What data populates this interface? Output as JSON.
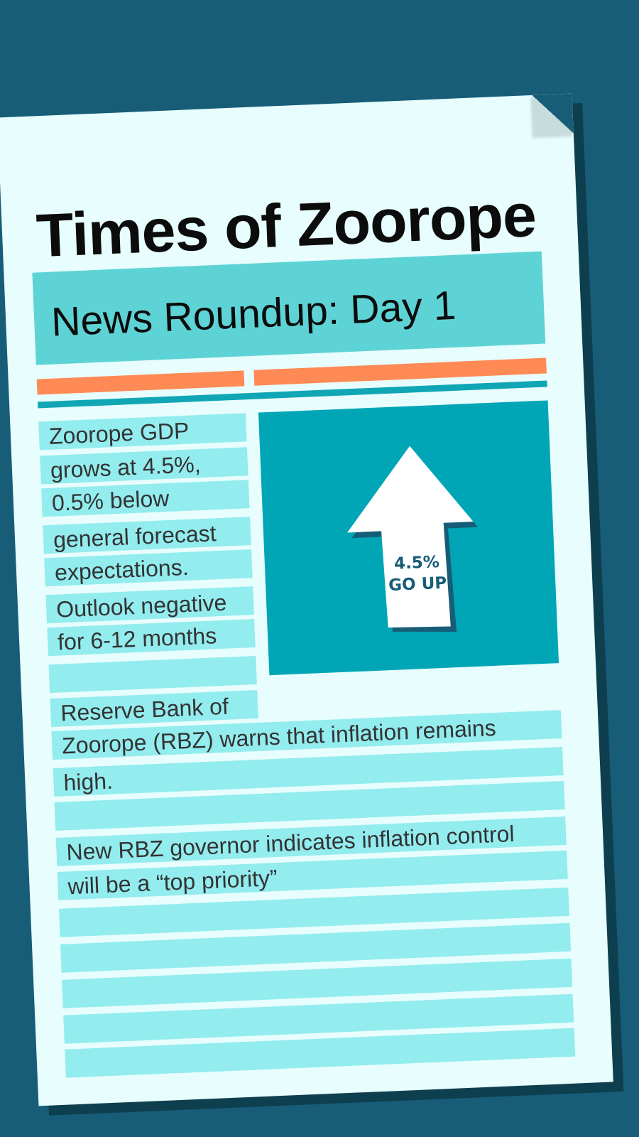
{
  "newspaper": {
    "masthead": "Times of Zoorope",
    "headline": "News Roundup: Day 1",
    "stories": {
      "gdp_lines": [
        "Zoorope GDP",
        "grows at 4.5%,",
        "0.5% below",
        "general forecast",
        "expectations.",
        "Outlook negative",
        "for 6-12 months"
      ],
      "rbz_lines": [
        "Reserve Bank of",
        "Zoorope (RBZ) warns that inflation remains",
        "high."
      ],
      "governor_lines": [
        "New RBZ governor indicates inflation control",
        "will be a “top priority”"
      ]
    },
    "figure": {
      "arrow_icon": "up-arrow-icon",
      "label_line1": "4.5%",
      "label_line2": "GO UP"
    },
    "colors": {
      "background": "#175d78",
      "paper": "#e8fdfd",
      "headline_box": "#5ed3d6",
      "accent_orange": "#ff8a55",
      "rule_teal": "#10a6b5",
      "text_line_fill": "#93ecee",
      "figure_box": "#00a6b5"
    }
  }
}
